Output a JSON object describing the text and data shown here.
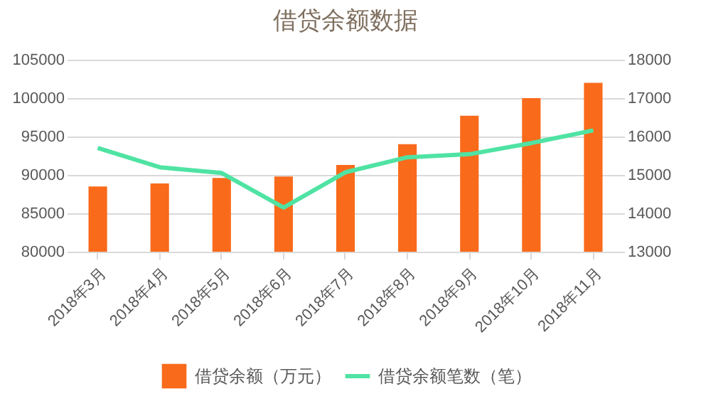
{
  "chart_data": {
    "type": "bar",
    "title": "借贷余额数据",
    "categories": [
      "2018年3月",
      "2018年4月",
      "2018年5月",
      "2018年6月",
      "2018年7月",
      "2018年8月",
      "2018年9月",
      "2018年10月",
      "2018年11月"
    ],
    "series": [
      {
        "name": "借贷余额（万元）",
        "color": "#f96a1b",
        "values": [
          88500,
          88900,
          89600,
          89800,
          91300,
          94000,
          97700,
          100000,
          102000
        ]
      },
      {
        "name": "借贷余额笔数（笔）",
        "color": "#4fe3a3",
        "type": "line",
        "axis": "y2",
        "values": [
          15700,
          15200,
          15050,
          14150,
          15070,
          15460,
          15540,
          15830,
          16160
        ]
      }
    ],
    "ylim": [
      80000,
      105000
    ],
    "yticks": [
      80000,
      85000,
      90000,
      95000,
      100000,
      105000
    ],
    "y2lim": [
      13000,
      18000
    ],
    "y2ticks": [
      13000,
      14000,
      15000,
      16000,
      17000,
      18000
    ],
    "grid": "y",
    "legend": "bottom"
  }
}
